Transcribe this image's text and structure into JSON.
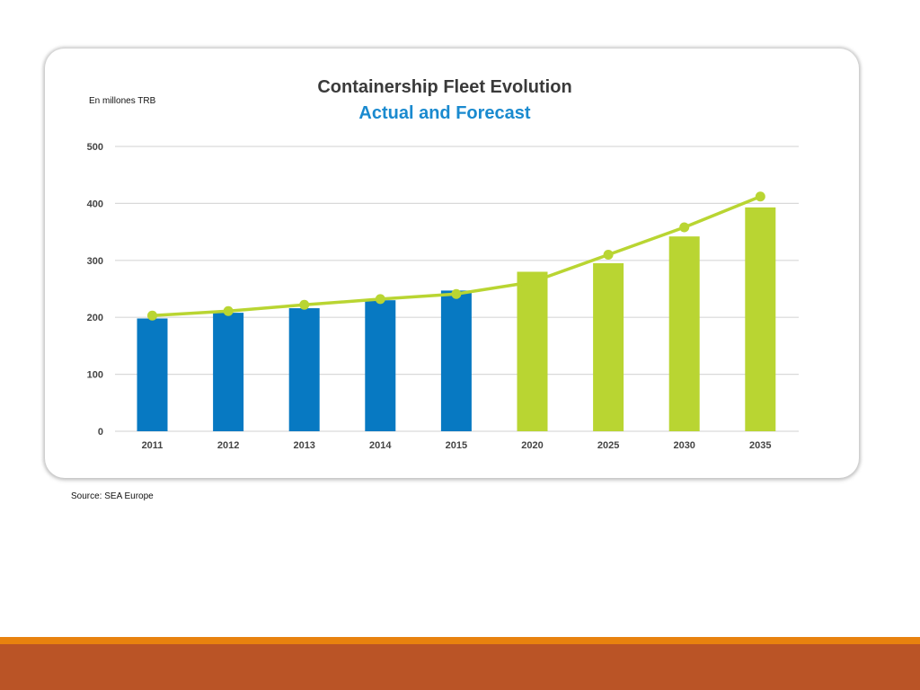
{
  "slide": {
    "unit_label": "En millones TRB",
    "source": "Source: SEA Europe"
  },
  "colors": {
    "actual": "#0779C2",
    "forecast": "#B9D532",
    "title": "#3A3A3A",
    "subtitle": "#1A8ACF",
    "grid": "#D9D9D9",
    "axis_text": "#444444",
    "band_top": "#E8820E",
    "band_bottom": "#BA5426"
  },
  "chart_data": {
    "type": "bar",
    "title": "Containership Fleet Evolution",
    "subtitle": "Actual and Forecast",
    "ylabel": "En millones TRB",
    "ylim": [
      0,
      500
    ],
    "yticks": [
      0,
      100,
      200,
      300,
      400,
      500
    ],
    "grid": true,
    "categories": [
      "2011",
      "2012",
      "2013",
      "2014",
      "2015",
      "2020",
      "2025",
      "2030",
      "2035"
    ],
    "series": [
      {
        "type": "bar",
        "values": [
          198,
          208,
          216,
          230,
          247,
          280,
          295,
          342,
          393
        ],
        "actual_count": 5
      },
      {
        "type": "line",
        "values": [
          203,
          211,
          222,
          232,
          241,
          262,
          310,
          358,
          412
        ],
        "marker_indices": [
          0,
          1,
          2,
          3,
          4,
          6,
          7,
          8
        ]
      }
    ]
  }
}
